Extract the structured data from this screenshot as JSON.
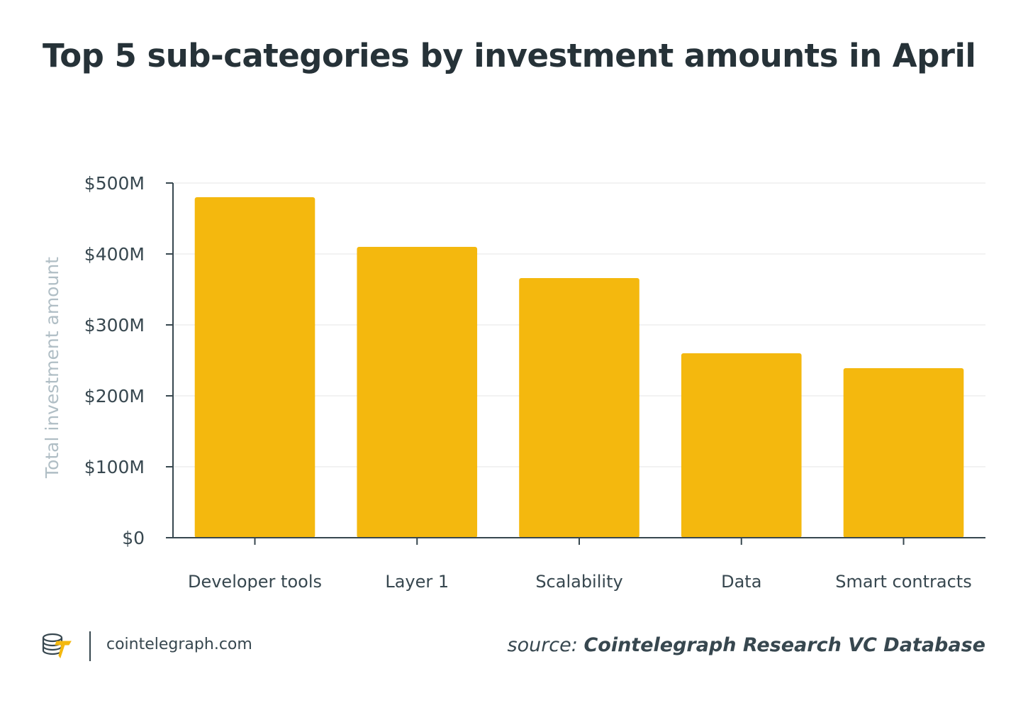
{
  "title": "Top 5 sub-categories by investment amounts in April",
  "colors": {
    "bar": "#F4B80E",
    "axis": "#37474F",
    "grid": "#EEEEEE",
    "tick_text": "#37474F",
    "ylabel_text": "#B0BEC5",
    "title_text": "#263238"
  },
  "chart_data": {
    "type": "bar",
    "title": "Top 5 sub-categories by investment amounts in April",
    "categories": [
      "Developer tools",
      "Layer 1",
      "Scalability",
      "Data",
      "Smart contracts"
    ],
    "values": [
      480,
      410,
      366,
      260,
      239
    ],
    "unit": "million USD",
    "xlabel": "",
    "ylabel": "Total investment amount",
    "ylim": [
      0,
      500
    ],
    "yticks": [
      0,
      100,
      200,
      300,
      400,
      500
    ],
    "ytick_labels": [
      "$0",
      "$100M",
      "$200M",
      "$300M",
      "$400M",
      "$500M"
    ],
    "grid": true,
    "legend": "none"
  },
  "footer": {
    "logo_icon": "cointelegraph-logo-icon",
    "site": "cointelegraph.com",
    "source_prefix": "source:",
    "source_name": "Cointelegraph Research VC Database"
  }
}
